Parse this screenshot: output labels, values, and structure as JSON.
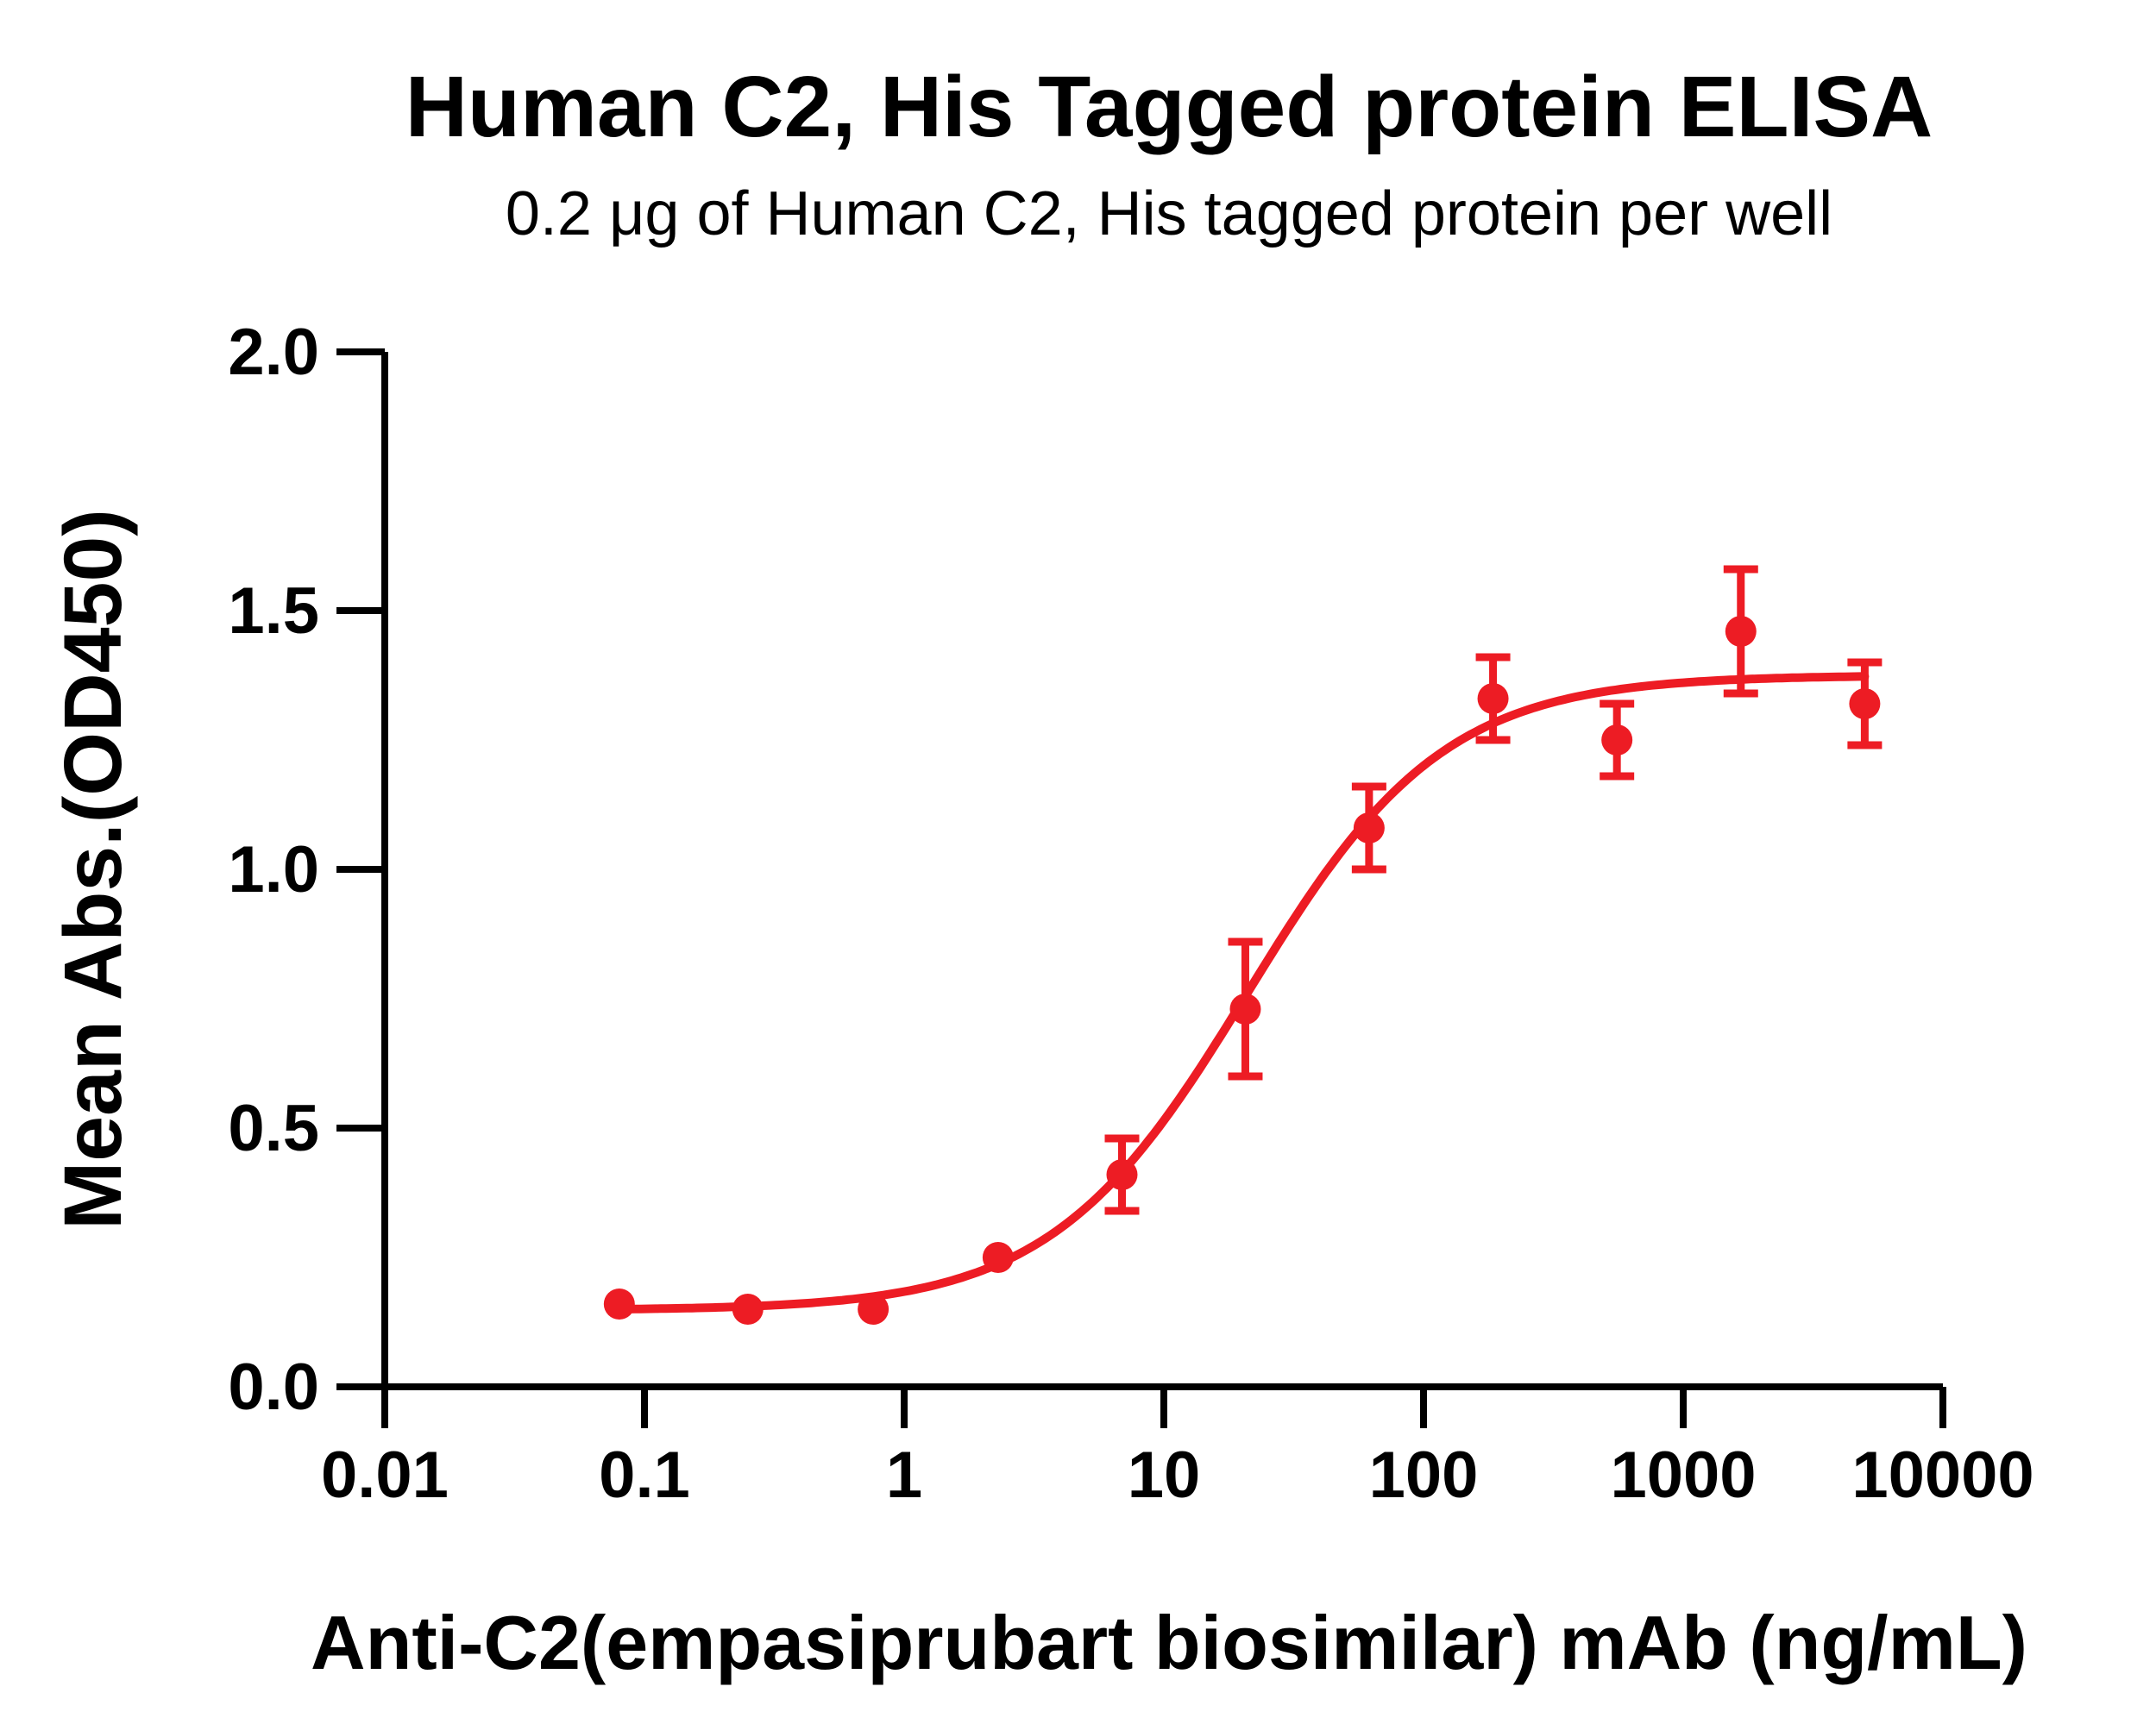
{
  "title": "Human C2, His Tagged protein ELISA",
  "subtitle": "0.2 μg of Human C2, His tagged protein per well",
  "colors": {
    "series": "#ED1C24",
    "axis": "#000000",
    "background": "#ffffff"
  },
  "chart_data": {
    "type": "scatter",
    "title": "Human C2, His Tagged protein ELISA",
    "subtitle": "0.2 μg of Human C2, His tagged protein per well",
    "xlabel": "Anti-C2(empasiprubart biosimilar) mAb (ng/mL)",
    "ylabel": "Mean Abs.(OD450)",
    "x_scale": "log10",
    "xlim": [
      0.01,
      10000
    ],
    "ylim": [
      0.0,
      2.0
    ],
    "x_tick_labels": [
      "0.01",
      "0.1",
      "1",
      "10",
      "100",
      "1000",
      "10000"
    ],
    "x_tick_values": [
      0.01,
      0.1,
      1,
      10,
      100,
      1000,
      10000
    ],
    "y_tick_labels": [
      "0.0",
      "0.5",
      "1.0",
      "1.5",
      "2.0"
    ],
    "y_tick_values": [
      0.0,
      0.5,
      1.0,
      1.5,
      2.0
    ],
    "grid": false,
    "legend_position": "none",
    "series": [
      {
        "name": "Anti-C2(empasiprubart biosimilar) mAb",
        "color": "#ED1C24",
        "marker": "circle",
        "points": [
          {
            "x": 0.08,
            "y": 0.16,
            "err": 0
          },
          {
            "x": 0.25,
            "y": 0.15,
            "err": 0
          },
          {
            "x": 0.76,
            "y": 0.15,
            "err": 0
          },
          {
            "x": 2.3,
            "y": 0.25,
            "err": 0
          },
          {
            "x": 6.9,
            "y": 0.41,
            "err": 0.07
          },
          {
            "x": 20.6,
            "y": 0.73,
            "err": 0.13
          },
          {
            "x": 61.7,
            "y": 1.08,
            "err": 0.08
          },
          {
            "x": 185.2,
            "y": 1.33,
            "err": 0.08
          },
          {
            "x": 555.6,
            "y": 1.25,
            "err": 0.07
          },
          {
            "x": 1666.7,
            "y": 1.46,
            "err": 0.12
          },
          {
            "x": 5000,
            "y": 1.32,
            "err": 0.08
          }
        ]
      }
    ],
    "curve_fit": {
      "model": "4PL",
      "bottom": 0.148,
      "top": 1.375,
      "ec50": 21,
      "hill": 1.15,
      "x_start": 0.08,
      "x_end": 5000
    }
  }
}
